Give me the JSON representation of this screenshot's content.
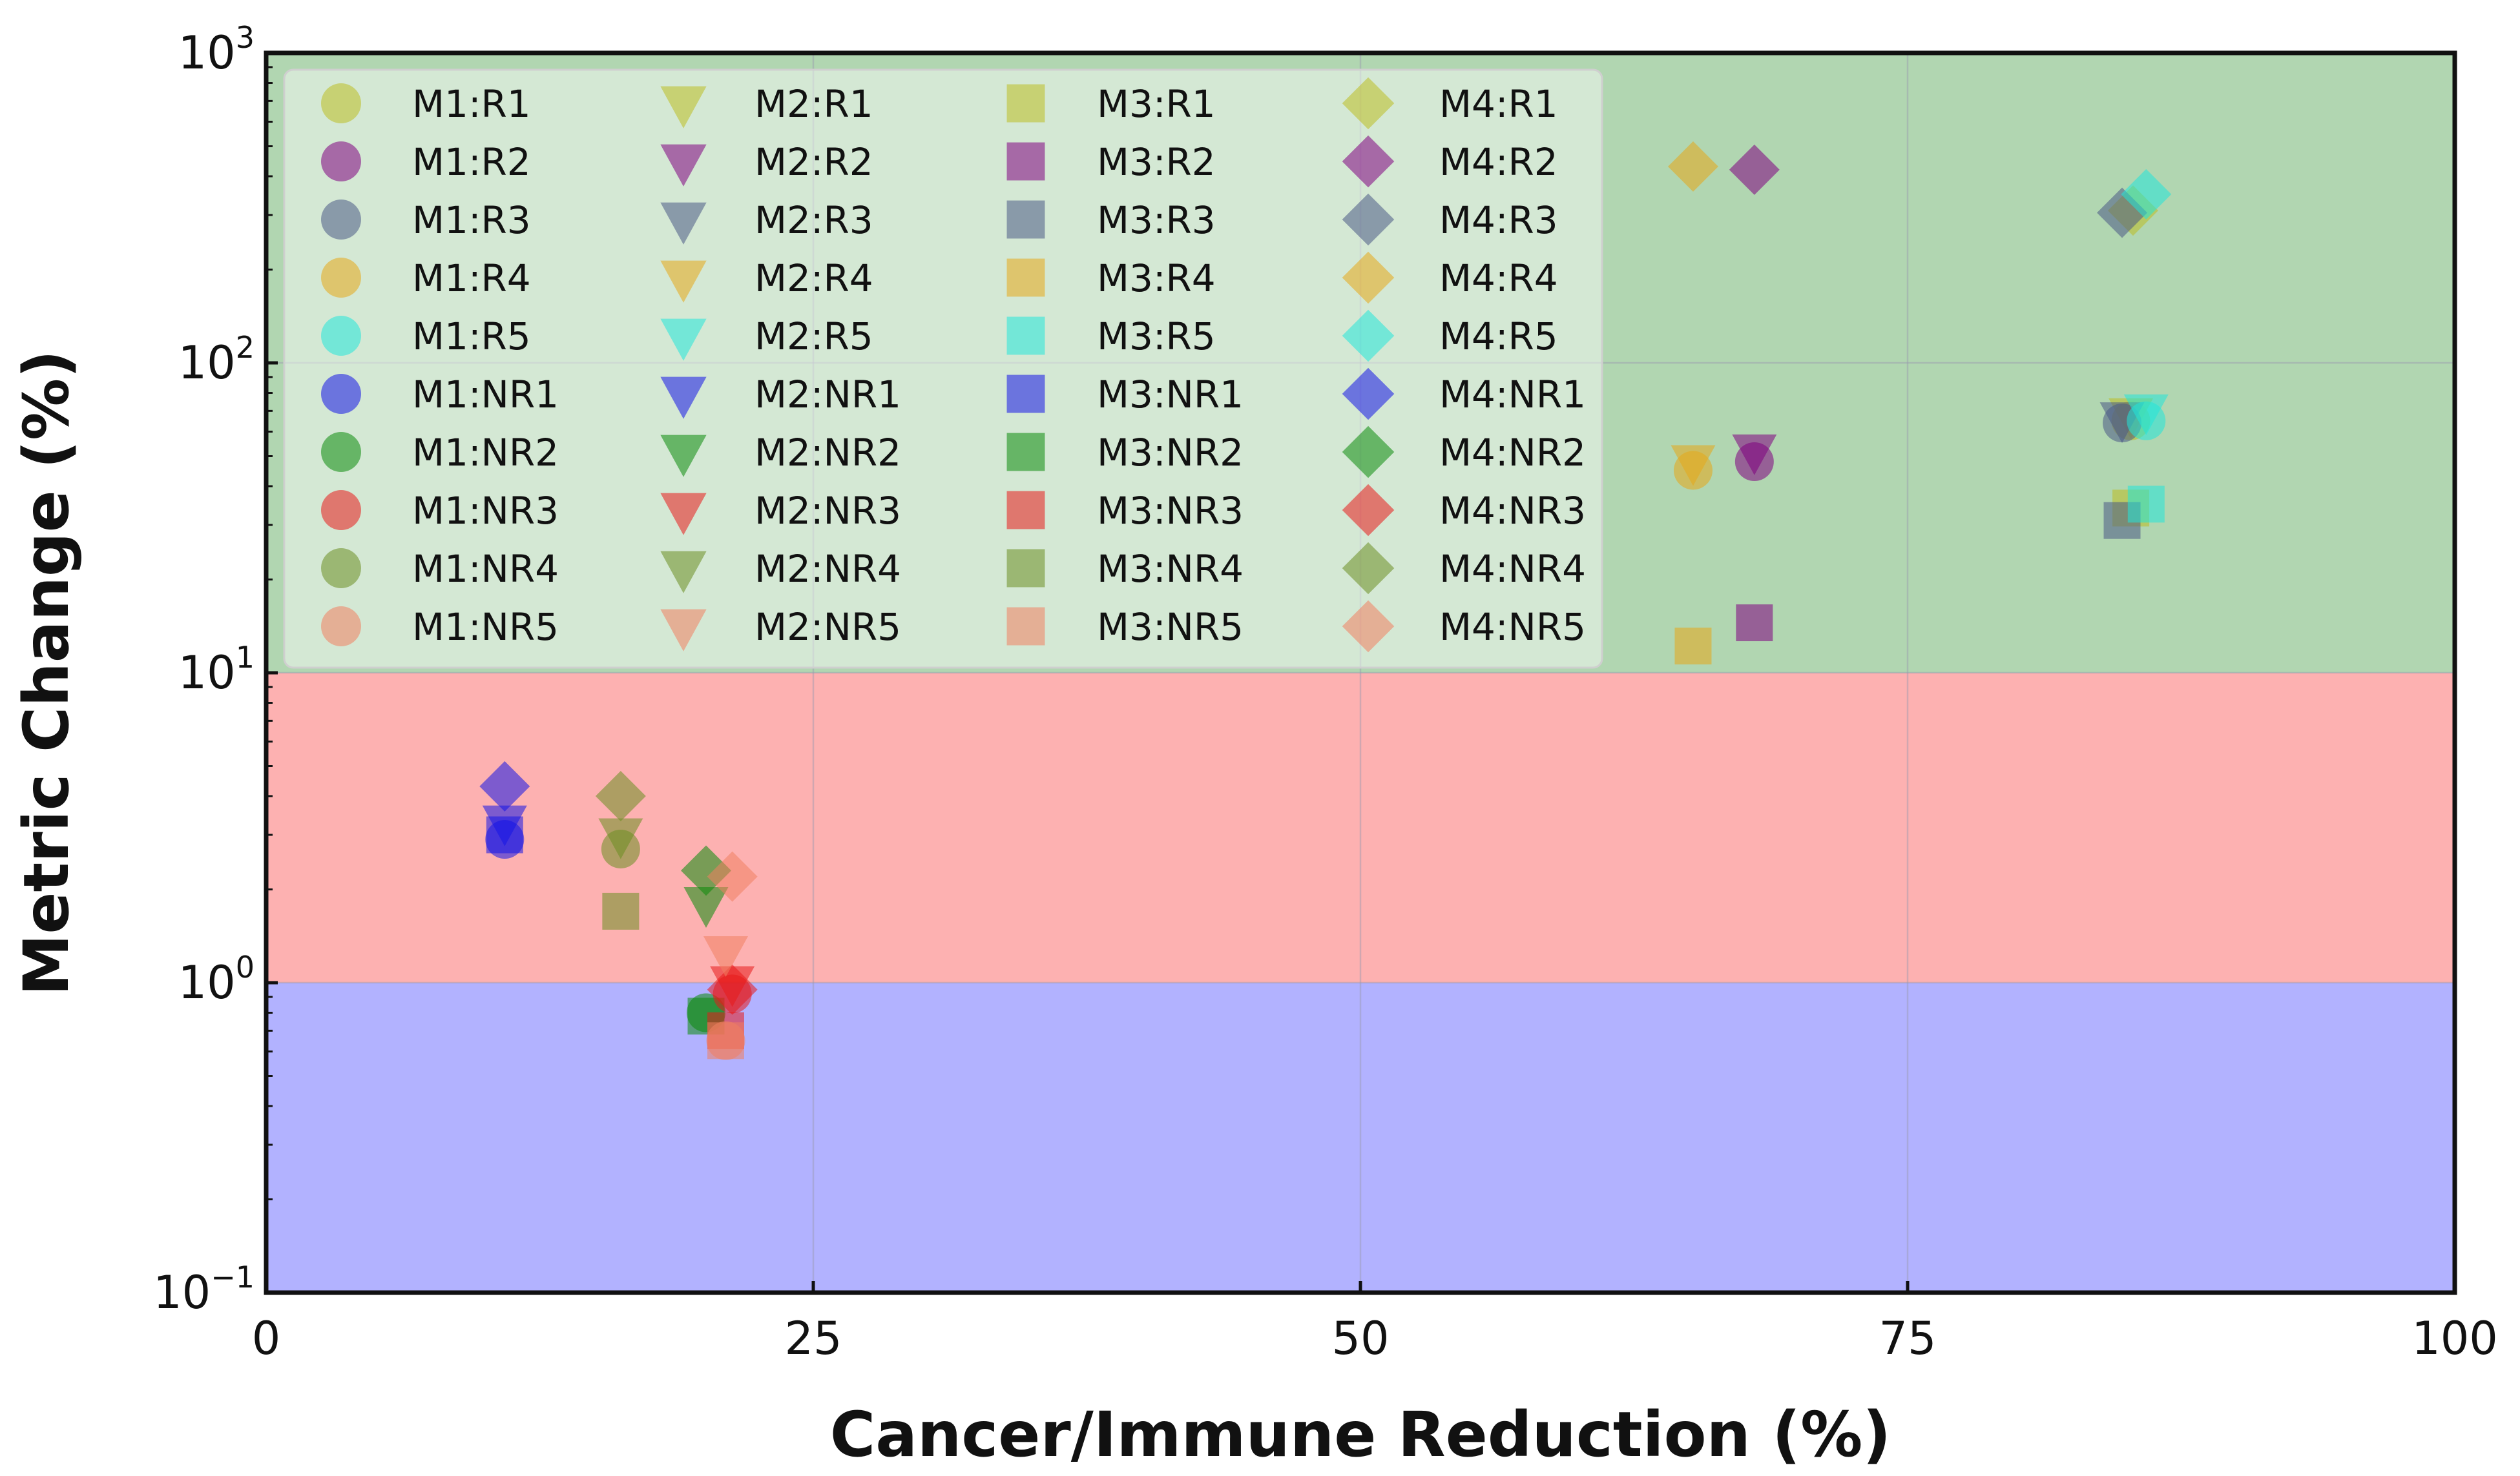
{
  "chart_data": {
    "type": "scatter",
    "xlabel": "Cancer/Immune Reduction (%)",
    "ylabel": "Metric Change (%)",
    "x_range": [
      0,
      100
    ],
    "y_range": [
      0.1,
      1000
    ],
    "y_scale": "log",
    "x_ticks": [
      0,
      25,
      50,
      75,
      100
    ],
    "y_ticks": [
      {
        "value": 0.1,
        "base": "10",
        "exp": "−1"
      },
      {
        "value": 1,
        "base": "10",
        "exp": "0"
      },
      {
        "value": 10,
        "base": "10",
        "exp": "1"
      },
      {
        "value": 100,
        "base": "10",
        "exp": "2"
      },
      {
        "value": 1000,
        "base": "10",
        "exp": "3"
      }
    ],
    "grid": true,
    "legend_position": "top-left",
    "regions": [
      {
        "name": "blue-band",
        "y_from": 0.1,
        "y_to": 1,
        "color": "#b2b2ff"
      },
      {
        "name": "red-band",
        "y_from": 1,
        "y_to": 10,
        "color": "#fdb1b1"
      },
      {
        "name": "green-band",
        "y_from": 10,
        "y_to": 1000,
        "color": "#b1d6b1"
      }
    ],
    "models": [
      {
        "name": "M1",
        "marker": "circle"
      },
      {
        "name": "M2",
        "marker": "triangle-down"
      },
      {
        "name": "M3",
        "marker": "square"
      },
      {
        "name": "M4",
        "marker": "diamond"
      }
    ],
    "groups": [
      {
        "name": "R1",
        "color": "#bcbd22"
      },
      {
        "name": "R2",
        "color": "#800080"
      },
      {
        "name": "R3",
        "color": "#4b5a85"
      },
      {
        "name": "R4",
        "color": "#e6a817"
      },
      {
        "name": "R5",
        "color": "#22e5d9"
      },
      {
        "name": "NR1",
        "color": "#1414e6"
      },
      {
        "name": "NR2",
        "color": "#0b8a0b"
      },
      {
        "name": "NR3",
        "color": "#e81a1a"
      },
      {
        "name": "NR4",
        "color": "#6b8e23"
      },
      {
        "name": "NR5",
        "color": "#f08060"
      }
    ],
    "legend": [
      [
        "M1:R1",
        "M1:R2",
        "M1:R3",
        "M1:R4",
        "M1:R5",
        "M1:NR1",
        "M1:NR2",
        "M1:NR3",
        "M1:NR4",
        "M1:NR5"
      ],
      [
        "M2:R1",
        "M2:R2",
        "M2:R3",
        "M2:R4",
        "M2:R5",
        "M2:NR1",
        "M2:NR2",
        "M2:NR3",
        "M2:NR4",
        "M2:NR5"
      ],
      [
        "M3:R1",
        "M3:R2",
        "M3:R3",
        "M3:R4",
        "M3:R5",
        "M3:NR1",
        "M3:NR2",
        "M3:NR3",
        "M3:NR4",
        "M3:NR5"
      ],
      [
        "M4:R1",
        "M4:R2",
        "M4:R3",
        "M4:R4",
        "M4:R5",
        "M4:NR1",
        "M4:NR2",
        "M4:NR3",
        "M4:NR4",
        "M4:NR5"
      ]
    ],
    "series": [
      {
        "name": "M1:R2",
        "model": "M1",
        "group": "R2",
        "x": 68,
        "y": 48
      },
      {
        "name": "M2:R2",
        "model": "M2",
        "group": "R2",
        "x": 68,
        "y": 52
      },
      {
        "name": "M3:R2",
        "model": "M3",
        "group": "R2",
        "x": 68,
        "y": 14.5
      },
      {
        "name": "M4:R2",
        "model": "M4",
        "group": "R2",
        "x": 68,
        "y": 420
      },
      {
        "name": "M1:R4",
        "model": "M1",
        "group": "R4",
        "x": 65.2,
        "y": 45
      },
      {
        "name": "M2:R4",
        "model": "M2",
        "group": "R4",
        "x": 65.2,
        "y": 48
      },
      {
        "name": "M3:R4",
        "model": "M3",
        "group": "R4",
        "x": 65.2,
        "y": 12.2
      },
      {
        "name": "M4:R4",
        "model": "M4",
        "group": "R4",
        "x": 65.2,
        "y": 430
      },
      {
        "name": "M1:R1",
        "model": "M1",
        "group": "R1",
        "x": 85.2,
        "y": 65
      },
      {
        "name": "M2:R1",
        "model": "M2",
        "group": "R1",
        "x": 85.2,
        "y": 68
      },
      {
        "name": "M3:R1",
        "model": "M3",
        "group": "R1",
        "x": 85.2,
        "y": 34
      },
      {
        "name": "M4:R1",
        "model": "M4",
        "group": "R1",
        "x": 85.3,
        "y": 310
      },
      {
        "name": "M1:R3",
        "model": "M1",
        "group": "R3",
        "x": 84.8,
        "y": 64
      },
      {
        "name": "M2:R3",
        "model": "M2",
        "group": "R3",
        "x": 84.8,
        "y": 66
      },
      {
        "name": "M3:R3",
        "model": "M3",
        "group": "R3",
        "x": 84.8,
        "y": 31
      },
      {
        "name": "M4:R3",
        "model": "M4",
        "group": "R3",
        "x": 84.8,
        "y": 305
      },
      {
        "name": "M1:R5",
        "model": "M1",
        "group": "R5",
        "x": 85.9,
        "y": 65
      },
      {
        "name": "M2:R5",
        "model": "M2",
        "group": "R5",
        "x": 85.9,
        "y": 70
      },
      {
        "name": "M3:R5",
        "model": "M3",
        "group": "R5",
        "x": 85.9,
        "y": 35
      },
      {
        "name": "M4:R5",
        "model": "M4",
        "group": "R5",
        "x": 85.9,
        "y": 350
      },
      {
        "name": "M1:NR1",
        "model": "M1",
        "group": "NR1",
        "x": 10.9,
        "y": 2.9
      },
      {
        "name": "M2:NR1",
        "model": "M2",
        "group": "NR1",
        "x": 10.9,
        "y": 3.3
      },
      {
        "name": "M3:NR1",
        "model": "M3",
        "group": "NR1",
        "x": 10.9,
        "y": 3.0
      },
      {
        "name": "M4:NR1",
        "model": "M4",
        "group": "NR1",
        "x": 10.9,
        "y": 4.3
      },
      {
        "name": "M1:NR4",
        "model": "M1",
        "group": "NR4",
        "x": 16.2,
        "y": 2.7
      },
      {
        "name": "M2:NR4",
        "model": "M2",
        "group": "NR4",
        "x": 16.2,
        "y": 3.0
      },
      {
        "name": "M3:NR4",
        "model": "M3",
        "group": "NR4",
        "x": 16.2,
        "y": 1.7
      },
      {
        "name": "M4:NR4",
        "model": "M4",
        "group": "NR4",
        "x": 16.2,
        "y": 4.0
      },
      {
        "name": "M1:NR2",
        "model": "M1",
        "group": "NR2",
        "x": 20.1,
        "y": 0.8
      },
      {
        "name": "M2:NR2",
        "model": "M2",
        "group": "NR2",
        "x": 20.1,
        "y": 1.8
      },
      {
        "name": "M3:NR2",
        "model": "M3",
        "group": "NR2",
        "x": 20.1,
        "y": 0.78
      },
      {
        "name": "M4:NR2",
        "model": "M4",
        "group": "NR2",
        "x": 20.1,
        "y": 2.3
      },
      {
        "name": "M1:NR3",
        "model": "M1",
        "group": "NR3",
        "x": 21.3,
        "y": 0.92
      },
      {
        "name": "M2:NR3",
        "model": "M2",
        "group": "NR3",
        "x": 21.3,
        "y": 1.0
      },
      {
        "name": "M3:NR3",
        "model": "M3",
        "group": "NR3",
        "x": 21.0,
        "y": 0.7
      },
      {
        "name": "M4:NR3",
        "model": "M4",
        "group": "NR3",
        "x": 21.3,
        "y": 0.95
      },
      {
        "name": "M1:NR5",
        "model": "M1",
        "group": "NR5",
        "x": 21.0,
        "y": 0.65
      },
      {
        "name": "M2:NR5",
        "model": "M2",
        "group": "NR5",
        "x": 21.0,
        "y": 1.25
      },
      {
        "name": "M3:NR5",
        "model": "M3",
        "group": "NR5",
        "x": 21.0,
        "y": 0.65
      },
      {
        "name": "M4:NR5",
        "model": "M4",
        "group": "NR5",
        "x": 21.3,
        "y": 2.2
      }
    ]
  }
}
